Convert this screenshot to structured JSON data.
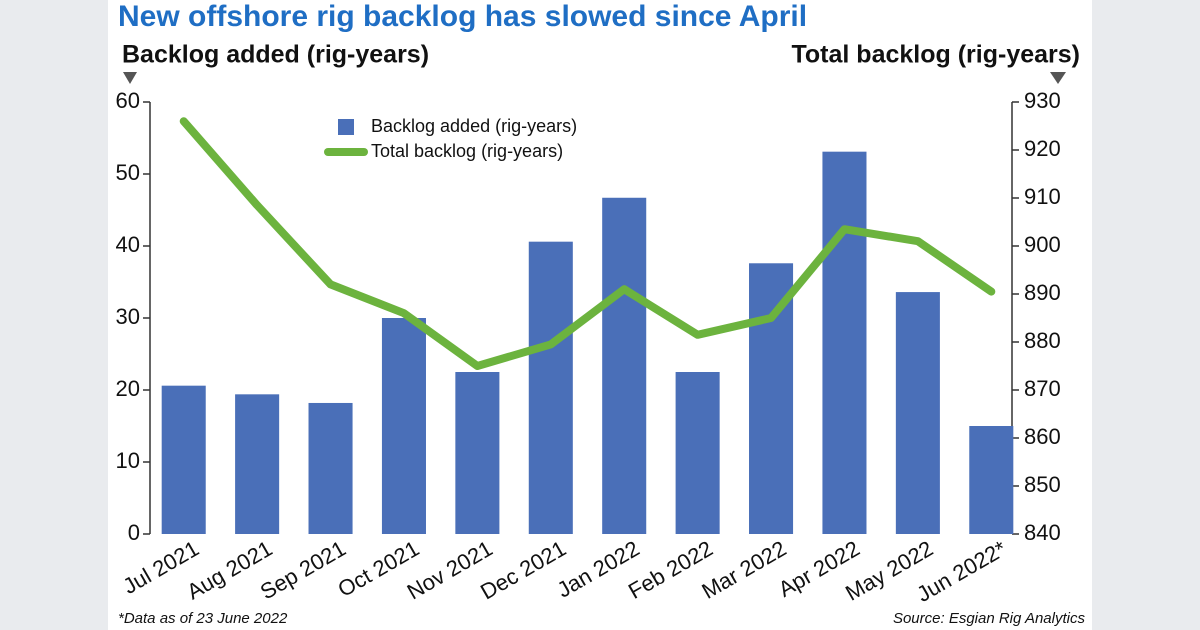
{
  "chart_data": {
    "type": "bar",
    "title": "New offshore rig backlog has slowed since April",
    "y_label": "Backlog added (rig-years)",
    "y2_label": "Total backlog (rig-years)",
    "footnote": "*Data as of 23 June 2022",
    "source": "Source: Esgian Rig Analytics",
    "categories": [
      "Jul 2021",
      "Aug 2021",
      "Sep 2021",
      "Oct 2021",
      "Nov 2021",
      "Dec 2021",
      "Jan 2022",
      "Feb 2022",
      "Mar 2022",
      "Apr 2022",
      "May 2022",
      "Jun 2022*"
    ],
    "series": [
      {
        "name": "Backlog added (rig-years)",
        "type": "bar",
        "color": "#4a6fb8",
        "values": [
          20.6,
          19.4,
          18.2,
          30,
          22.5,
          40.6,
          46.7,
          22.5,
          37.6,
          53.1,
          33.6,
          15
        ]
      },
      {
        "name": "Total backlog (rig-years)",
        "type": "line",
        "axis": "y2",
        "color": "#6cb33e",
        "values": [
          926,
          908.5,
          892,
          886,
          875,
          879.5,
          891,
          881.5,
          885,
          903.5,
          901,
          890.5
        ]
      }
    ],
    "ylim": [
      0,
      60
    ],
    "yticks": [
      0,
      10,
      20,
      30,
      40,
      50,
      60
    ],
    "y2lim": [
      840,
      930
    ],
    "y2ticks": [
      840,
      850,
      860,
      870,
      880,
      890,
      900,
      910,
      920,
      930
    ],
    "legend": "top-left"
  }
}
